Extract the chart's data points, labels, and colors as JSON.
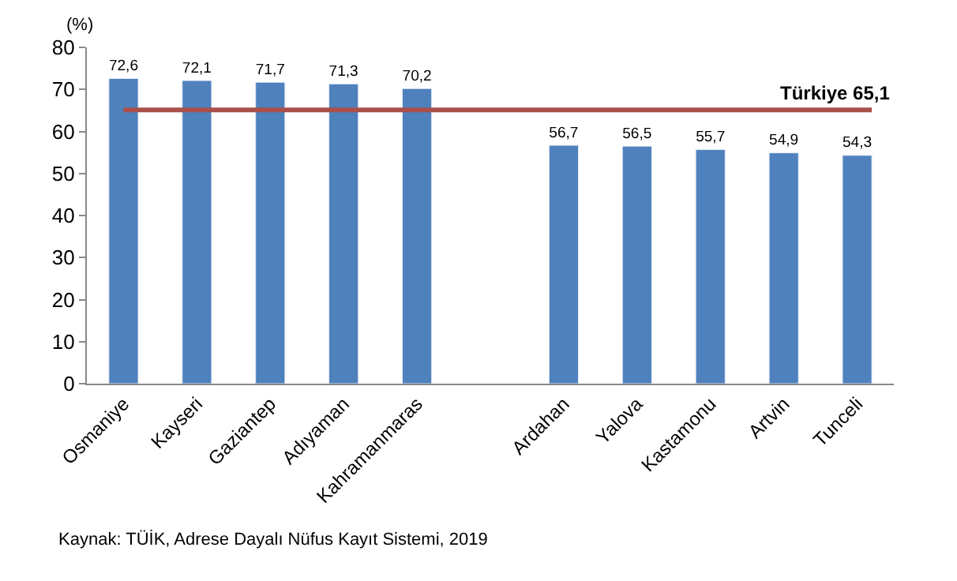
{
  "chart_data": {
    "type": "bar",
    "ylabel": "(%)",
    "categories": [
      "Osmaniye",
      "Kayseri",
      "Gaziantep",
      "Adıyaman",
      "Kahramanmaras",
      null,
      "Ardahan",
      "Yalova",
      "Kastamonu",
      "Artvin",
      "Tunceli"
    ],
    "values": [
      72.6,
      72.1,
      71.7,
      71.3,
      70.2,
      null,
      56.7,
      56.5,
      55.7,
      54.9,
      54.3
    ],
    "value_labels": [
      "72,6",
      "72,1",
      "71,7",
      "71,3",
      "70,2",
      null,
      "56,7",
      "56,5",
      "55,7",
      "54,9",
      "54,3"
    ],
    "color": "#4f81bd",
    "ylim": [
      0,
      80
    ],
    "yticks": [
      0,
      10,
      20,
      30,
      40,
      50,
      60,
      70,
      80
    ],
    "ref_lines": [
      {
        "axis": "y",
        "value": 65.1,
        "label": "Türkiye 65,1",
        "color": "#a9504b"
      }
    ],
    "annotations": [
      "Kaynak: TÜİK, Adrese Dayalı Nüfus Kayıt Sistemi, 2019"
    ]
  }
}
